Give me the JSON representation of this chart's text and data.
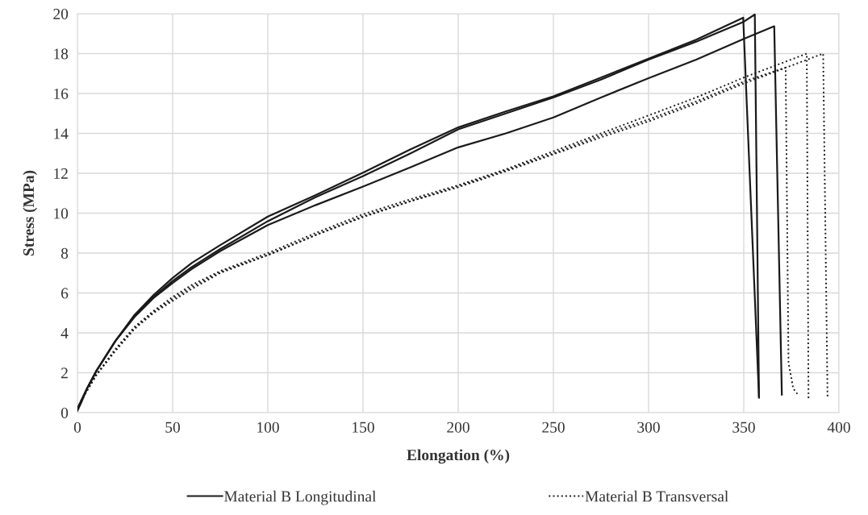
{
  "chart_data": {
    "type": "line",
    "xlabel": "Elongation (%)",
    "ylabel": "Stress (MPa)",
    "xlim": [
      0,
      400
    ],
    "ylim": [
      0,
      20
    ],
    "xticks": [
      0,
      50,
      100,
      150,
      200,
      250,
      300,
      350,
      400
    ],
    "yticks": [
      0,
      2,
      4,
      6,
      8,
      10,
      12,
      14,
      16,
      18,
      20
    ],
    "grid": true,
    "legend": "bottom",
    "marker": "none",
    "series": [
      {
        "name": "Material B Longitudinal",
        "color": "#1a1a1a",
        "line_style": "solid",
        "x": [
          0,
          2,
          5,
          10,
          20,
          30,
          40,
          50,
          60,
          75,
          100,
          125,
          150,
          175,
          200,
          225,
          250,
          275,
          300,
          325,
          349.7,
          358
        ],
        "values": [
          0.1,
          0.5,
          1.2,
          2.1,
          3.6,
          4.9,
          5.9,
          6.75,
          7.5,
          8.4,
          9.83,
          10.9,
          12.03,
          13.2,
          14.3,
          15.1,
          15.86,
          16.8,
          17.75,
          18.7,
          19.8,
          0.75
        ]
      },
      {
        "color": "#1a1a1a",
        "line_style": "solid",
        "x": [
          0,
          2,
          5,
          10,
          20,
          30,
          40,
          50,
          60,
          75,
          100,
          125,
          150,
          175,
          200,
          225,
          250,
          275,
          300,
          325,
          350,
          355.8,
          358
        ],
        "values": [
          0.2,
          0.6,
          1.2,
          2.1,
          3.6,
          4.85,
          5.8,
          6.6,
          7.3,
          8.2,
          9.6,
          10.8,
          11.86,
          13.0,
          14.2,
          15.0,
          15.8,
          16.7,
          17.7,
          18.6,
          19.6,
          19.96,
          0.8
        ]
      },
      {
        "color": "#1a1a1a",
        "line_style": "solid",
        "x": [
          0,
          2,
          5,
          10,
          20,
          30,
          40,
          50,
          60,
          75,
          100,
          125,
          150,
          175,
          200,
          225,
          250,
          275,
          300,
          325,
          350,
          366,
          370
        ],
        "values": [
          0.2,
          0.6,
          1.2,
          2.1,
          3.6,
          4.8,
          5.75,
          6.5,
          7.2,
          8.1,
          9.4,
          10.4,
          11.33,
          12.3,
          13.3,
          14.0,
          14.8,
          15.8,
          16.77,
          17.7,
          18.74,
          19.37,
          0.9
        ]
      },
      {
        "name": "Material B Transversal",
        "color": "#1a1a1a",
        "line_style": "dotted",
        "x": [
          0,
          2,
          5,
          10,
          20,
          30,
          40,
          50,
          60,
          75,
          100,
          125,
          150,
          175,
          200,
          225,
          250,
          275,
          300,
          325,
          350,
          383.1,
          384
        ],
        "values": [
          0.2,
          0.6,
          1.1,
          1.9,
          3.2,
          4.3,
          5.1,
          5.8,
          6.4,
          7.1,
          8.0,
          9.0,
          9.95,
          10.7,
          11.4,
          12.2,
          13.1,
          14.0,
          14.9,
          15.8,
          16.8,
          18.0,
          0.7
        ]
      },
      {
        "color": "#1a1a1a",
        "line_style": "dotted",
        "x": [
          0,
          2,
          5,
          10,
          20,
          30,
          40,
          50,
          60,
          75,
          100,
          125,
          150,
          175,
          200,
          225,
          250,
          275,
          300,
          325,
          350,
          391.7,
          394
        ],
        "values": [
          0.2,
          0.6,
          1.1,
          1.9,
          3.1,
          4.2,
          5.0,
          5.6,
          6.2,
          7.0,
          7.9,
          8.9,
          9.8,
          10.6,
          11.3,
          12.1,
          12.95,
          13.8,
          14.6,
          15.5,
          16.5,
          18.0,
          0.8
        ]
      },
      {
        "color": "#1a1a1a",
        "line_style": "dotted",
        "x": [
          0,
          2,
          5,
          10,
          20,
          30,
          40,
          50,
          60,
          75,
          100,
          125,
          150,
          175,
          200,
          225,
          250,
          275,
          300,
          325,
          350,
          372,
          373.5,
          376,
          379
        ],
        "values": [
          0.2,
          0.6,
          1.1,
          1.9,
          3.15,
          4.25,
          5.05,
          5.7,
          6.3,
          7.05,
          7.9,
          8.9,
          9.85,
          10.6,
          11.35,
          12.15,
          13.0,
          13.9,
          14.7,
          15.6,
          16.6,
          17.3,
          2.5,
          1.2,
          0.84
        ]
      }
    ]
  }
}
